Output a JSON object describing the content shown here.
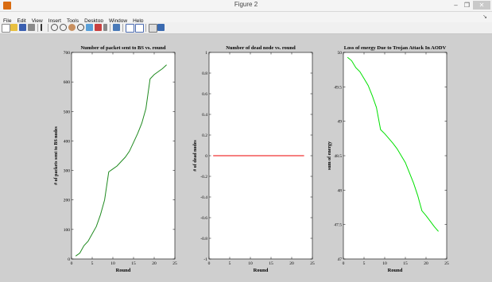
{
  "window": {
    "title": "Figure 2",
    "controls": [
      "–",
      "❐",
      "✕"
    ]
  },
  "menu": [
    "File",
    "Edit",
    "View",
    "Insert",
    "Tools",
    "Desktop",
    "Window",
    "Help"
  ],
  "toolbar_icons": [
    "new-figure-icon",
    "open-file-icon",
    "save-icon",
    "print-icon",
    "pointer-icon",
    "zoom-in-icon",
    "zoom-out-icon",
    "pan-icon",
    "rotate-icon",
    "data-cursor-icon",
    "brush-icon",
    "link-icon",
    "colorbar-icon",
    "legend-icon",
    "hide-plot-tools-icon",
    "show-plot-tools-icon"
  ],
  "colors": {
    "green": "#00cc00",
    "red": "#ee0000"
  },
  "chart_data": [
    {
      "type": "line",
      "title": "Number of packet sent to BS vs. round",
      "xlabel": "Round",
      "ylabel": "# of packets sent to BS nodes",
      "xlim": [
        0,
        25
      ],
      "ylim": [
        0,
        700
      ],
      "xticks": [
        "0",
        "5",
        "10",
        "15",
        "20",
        "25"
      ],
      "yticks": [
        "0",
        "100",
        "200",
        "300",
        "400",
        "500",
        "600",
        "700"
      ],
      "series": [
        {
          "color": "#1f8a1f",
          "x": [
            1,
            2,
            3,
            4,
            5,
            6,
            7,
            8,
            9,
            10,
            11,
            12,
            13,
            14,
            15,
            16,
            17,
            18,
            19,
            20,
            21,
            22,
            23
          ],
          "y": [
            10,
            20,
            45,
            60,
            85,
            110,
            150,
            200,
            295,
            305,
            315,
            330,
            345,
            365,
            395,
            425,
            460,
            510,
            610,
            625,
            635,
            645,
            658
          ]
        }
      ]
    },
    {
      "type": "line",
      "title": "Number of dead node vs. round",
      "xlabel": "Round",
      "ylabel": "# of dead nodes",
      "xlim": [
        0,
        25
      ],
      "ylim": [
        -1,
        1
      ],
      "xticks": [
        "0",
        "5",
        "10",
        "15",
        "20",
        "25"
      ],
      "yticks": [
        "-1",
        "-0.8",
        "-0.6",
        "-0.4",
        "-0.2",
        "0",
        "0.2",
        "0.4",
        "0.6",
        "0.8",
        "1"
      ],
      "series": [
        {
          "color": "#ee0000",
          "x": [
            1,
            23
          ],
          "y": [
            0,
            0
          ]
        }
      ]
    },
    {
      "type": "line",
      "title": "Loss of energy Due to Trojan Attack In AODV",
      "xlabel": "Round",
      "ylabel": "sum of energy",
      "xlim": [
        0,
        25
      ],
      "ylim": [
        47,
        50
      ],
      "xticks": [
        "0",
        "5",
        "10",
        "15",
        "20",
        "25"
      ],
      "yticks": [
        "47",
        "47.5",
        "48",
        "48.5",
        "49",
        "49.5",
        "50"
      ],
      "series": [
        {
          "color": "#00e000",
          "x": [
            1,
            2,
            3,
            4,
            5,
            6,
            7,
            8,
            9,
            10,
            11,
            12,
            13,
            14,
            15,
            16,
            17,
            18,
            19,
            20,
            21,
            22,
            23
          ],
          "y": [
            49.93,
            49.88,
            49.78,
            49.72,
            49.62,
            49.52,
            49.37,
            49.2,
            48.88,
            48.82,
            48.75,
            48.68,
            48.6,
            48.5,
            48.4,
            48.25,
            48.1,
            47.92,
            47.7,
            47.63,
            47.55,
            47.47,
            47.4
          ]
        }
      ]
    }
  ]
}
